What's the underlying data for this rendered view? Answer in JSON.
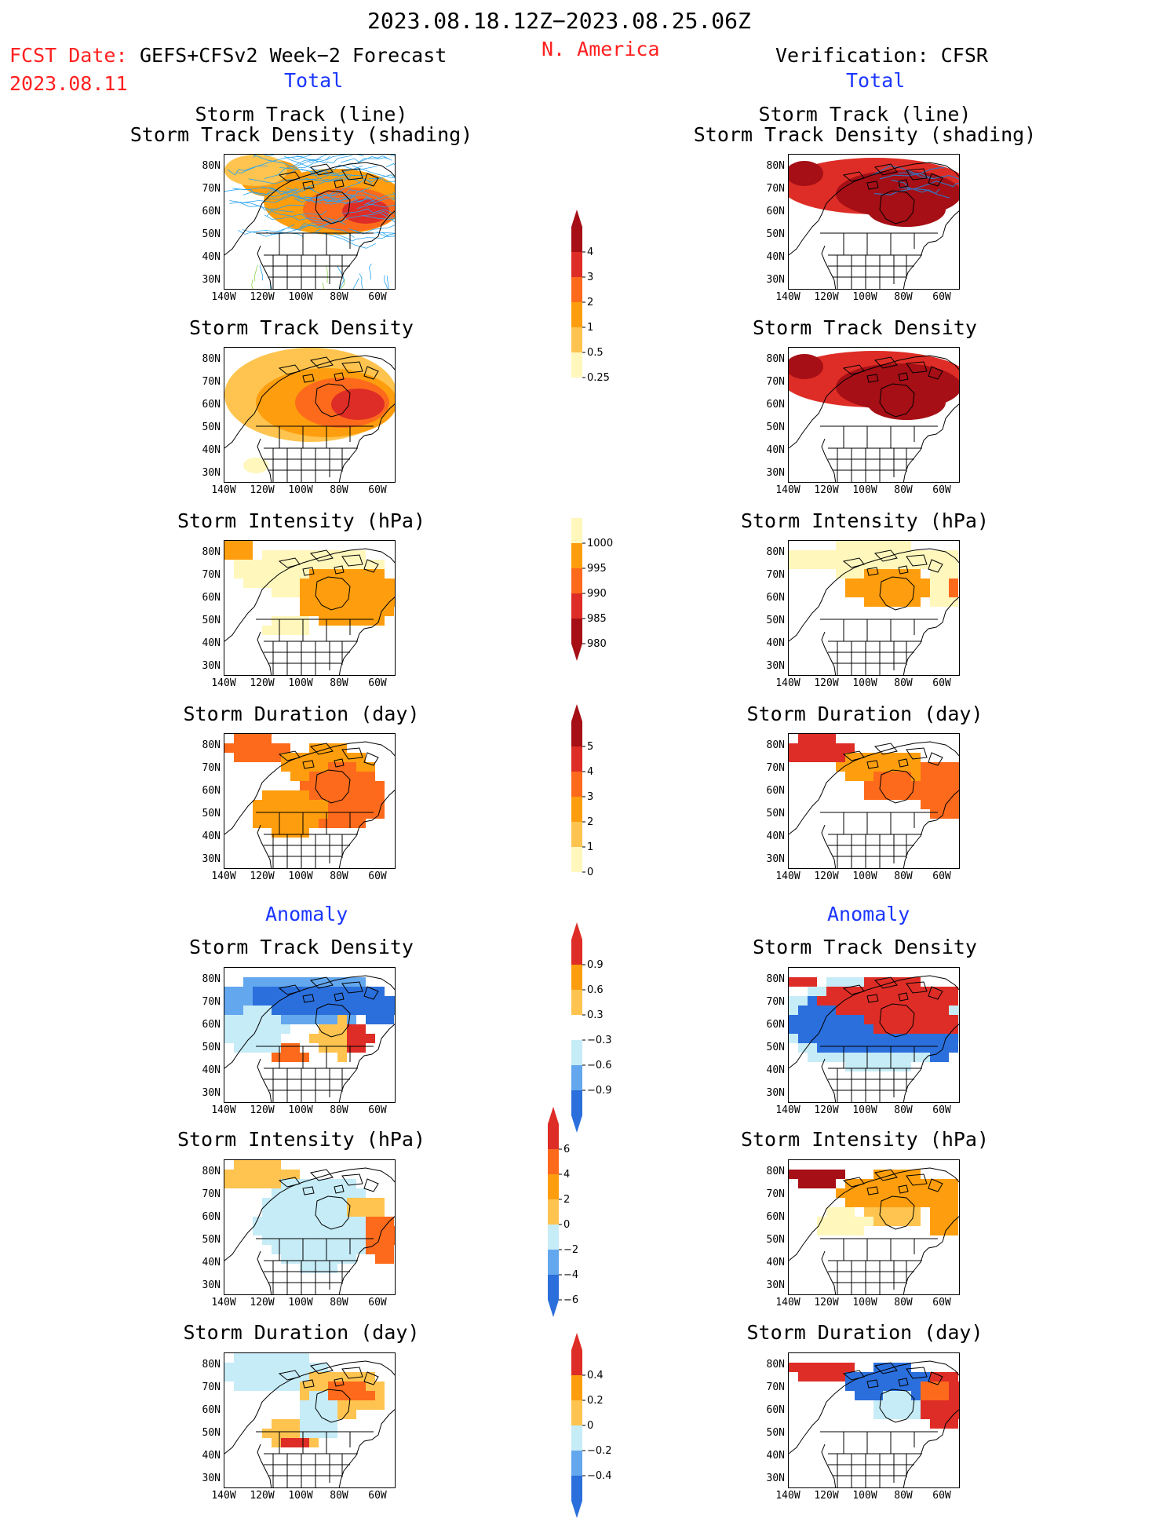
{
  "header": {
    "date_range": "2023.08.18.12Z−2023.08.25.06Z",
    "fcst_date_label": "FCST Date:",
    "fcst_date": "2023.08.11",
    "forecast_source": "GEFS+CFSv2 Week−2 Forecast",
    "region": "N. America",
    "verification": "Verification: CFSR"
  },
  "sections": {
    "left_total": "Total",
    "right_total": "Total",
    "left_anomaly": "Anomaly",
    "right_anomaly": "Anomaly"
  },
  "panel_titles": {
    "track_line": "Storm Track (line)",
    "track_shading": "Storm Track Density (shading)",
    "density": "Storm Track Density",
    "intensity": "Storm Intensity (hPa)",
    "duration": "Storm Duration (day)"
  },
  "axes": {
    "lat_labels": [
      "80N",
      "70N",
      "60N",
      "50N",
      "40N",
      "30N"
    ],
    "lon_labels": [
      "140W",
      "120W",
      "100W",
      "80W",
      "60W"
    ]
  },
  "colorbars": {
    "density": {
      "labels": [
        "4",
        "3",
        "2",
        "1",
        "0.5",
        "0.25"
      ],
      "colors": [
        "#a50f15",
        "#de2d26",
        "#fd6a1c",
        "#fe9e0e",
        "#fec44f",
        "#fff7bc"
      ]
    },
    "intensity": {
      "labels": [
        "1000",
        "995",
        "990",
        "985",
        "980"
      ],
      "colors": [
        "#fff7bc",
        "#fe9e0e",
        "#fd6a1c",
        "#de2d26",
        "#a50f15"
      ]
    },
    "duration": {
      "labels": [
        "5",
        "4",
        "3",
        "2",
        "1",
        "0"
      ],
      "colors": [
        "#a50f15",
        "#de2d26",
        "#fd6a1c",
        "#fe9e0e",
        "#fec44f",
        "#fff7bc"
      ]
    },
    "anom_density": {
      "labels": [
        "0.9",
        "0.6",
        "0.3",
        "−0.3",
        "−0.6",
        "−0.9"
      ]
    },
    "anom_intensity": {
      "labels": [
        "6",
        "4",
        "2",
        "0",
        "−2",
        "−4",
        "−6"
      ]
    },
    "anom_duration": {
      "labels": [
        "0.4",
        "0.2",
        "0",
        "−0.2",
        "−0.4"
      ]
    }
  },
  "colors": {
    "title_red": "#ff2020",
    "section_blue": "#1a36ff",
    "pale_yellow": "#fff7bc",
    "yellow": "#fec44f",
    "orange": "#fe9e0e",
    "dark_orange": "#fd6a1c",
    "red": "#de2d26",
    "dark_red": "#a50f15",
    "light_blue": "#c6ecf7",
    "mid_blue": "#63a7ee",
    "blue": "#2b6fdc"
  }
}
